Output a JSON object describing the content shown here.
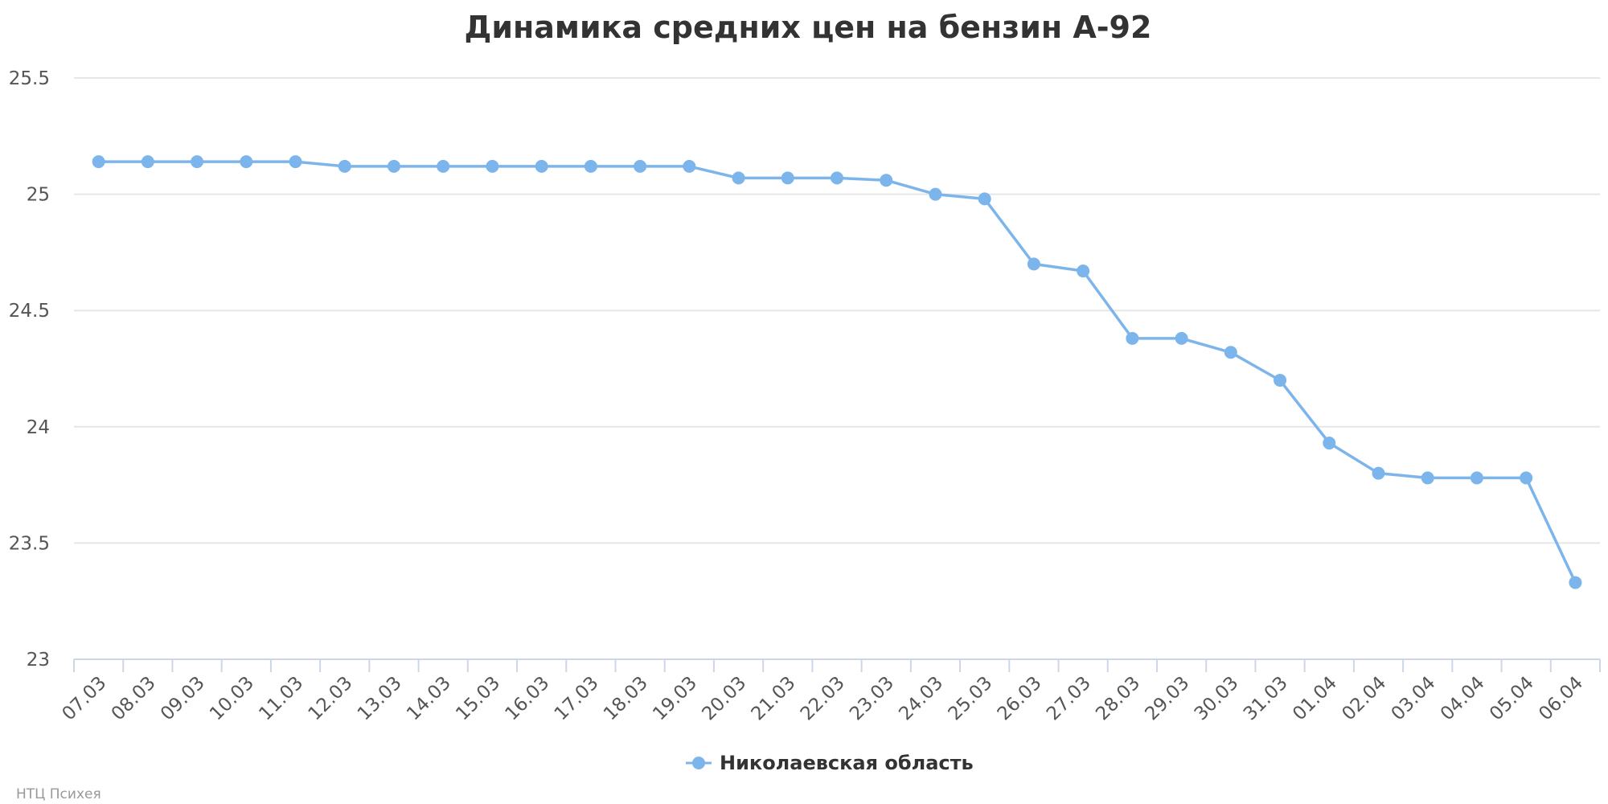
{
  "chart_data": {
    "type": "line",
    "title": "Динамика средних цен на бензин А-92",
    "categories": [
      "07.03",
      "08.03",
      "09.03",
      "10.03",
      "11.03",
      "12.03",
      "13.03",
      "14.03",
      "15.03",
      "16.03",
      "17.03",
      "18.03",
      "19.03",
      "20.03",
      "21.03",
      "22.03",
      "23.03",
      "24.03",
      "25.03",
      "26.03",
      "27.03",
      "28.03",
      "29.03",
      "30.03",
      "31.03",
      "01.04",
      "02.04",
      "03.04",
      "04.04",
      "05.04",
      "06.04"
    ],
    "series": [
      {
        "name": "Николаевская область",
        "color": "#7cb5ec",
        "values": [
          25.14,
          25.14,
          25.14,
          25.14,
          25.14,
          25.12,
          25.12,
          25.12,
          25.12,
          25.12,
          25.12,
          25.12,
          25.12,
          25.07,
          25.07,
          25.07,
          25.06,
          25.0,
          24.98,
          24.7,
          24.67,
          24.38,
          24.38,
          24.32,
          24.2,
          23.93,
          23.8,
          23.78,
          23.78,
          23.78,
          23.33
        ]
      }
    ],
    "yticks": [
      "23",
      "23.5",
      "24",
      "24.5",
      "25",
      "25.5"
    ],
    "ylim": [
      23,
      25.5
    ],
    "grid": true,
    "legend_position": "bottom-center",
    "x_tick_rotation": "diagonal"
  },
  "credits": "НТЦ Психея"
}
